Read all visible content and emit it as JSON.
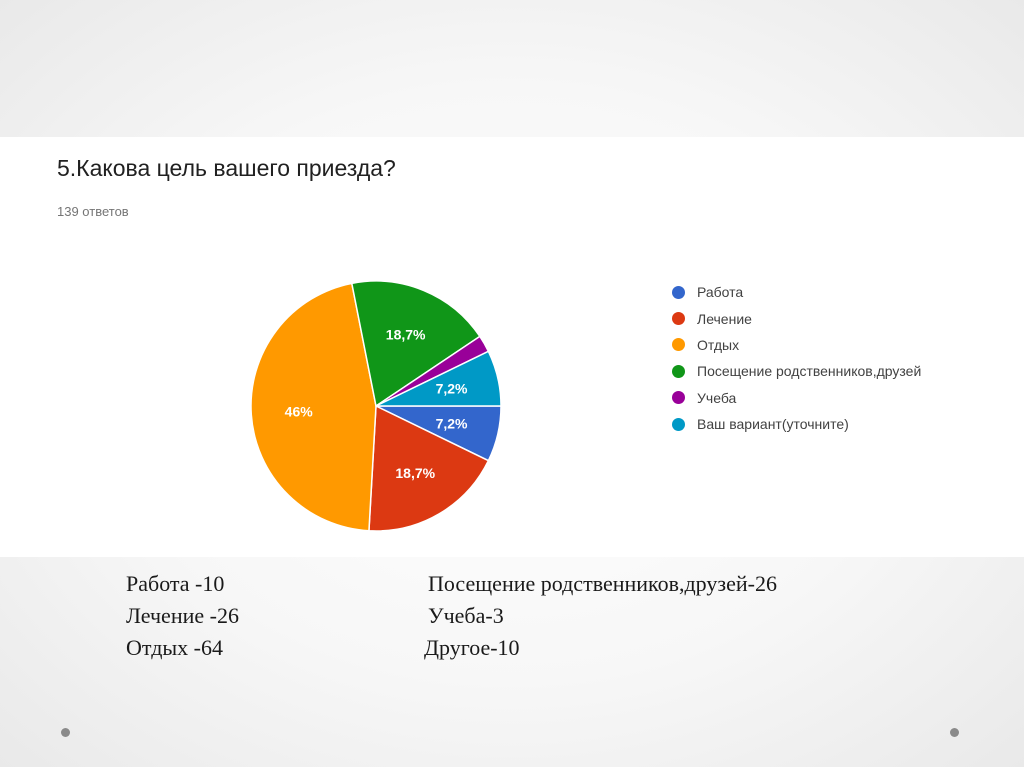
{
  "question": "5.Какова цель вашего приезда?",
  "responses": "139 ответов",
  "chart_data": {
    "type": "pie",
    "slices": [
      {
        "label": "Работа",
        "value": 7.2,
        "display": "7,2%",
        "color": "#3366cc"
      },
      {
        "label": "Лечение",
        "value": 18.7,
        "display": "18,7%",
        "color": "#dc3912"
      },
      {
        "label": "Отдых",
        "value": 46.0,
        "display": "46%",
        "color": "#ff9900"
      },
      {
        "label": "Посещение родственников,друзей",
        "value": 18.7,
        "display": "18,7%",
        "color": "#109618"
      },
      {
        "label": "Учеба",
        "value": 2.2,
        "display": "",
        "color": "#990099"
      },
      {
        "label": "Ваш вариант(уточните)",
        "value": 7.2,
        "display": "7,2%",
        "color": "#0099c6"
      }
    ],
    "legend": "right"
  },
  "summary": {
    "left": [
      "Работа  -10",
      "Лечение -26",
      "Отдых -64"
    ],
    "right": [
      "Посещение родственников,друзей-26",
      "Учеба-3",
      "Другое-10"
    ]
  }
}
